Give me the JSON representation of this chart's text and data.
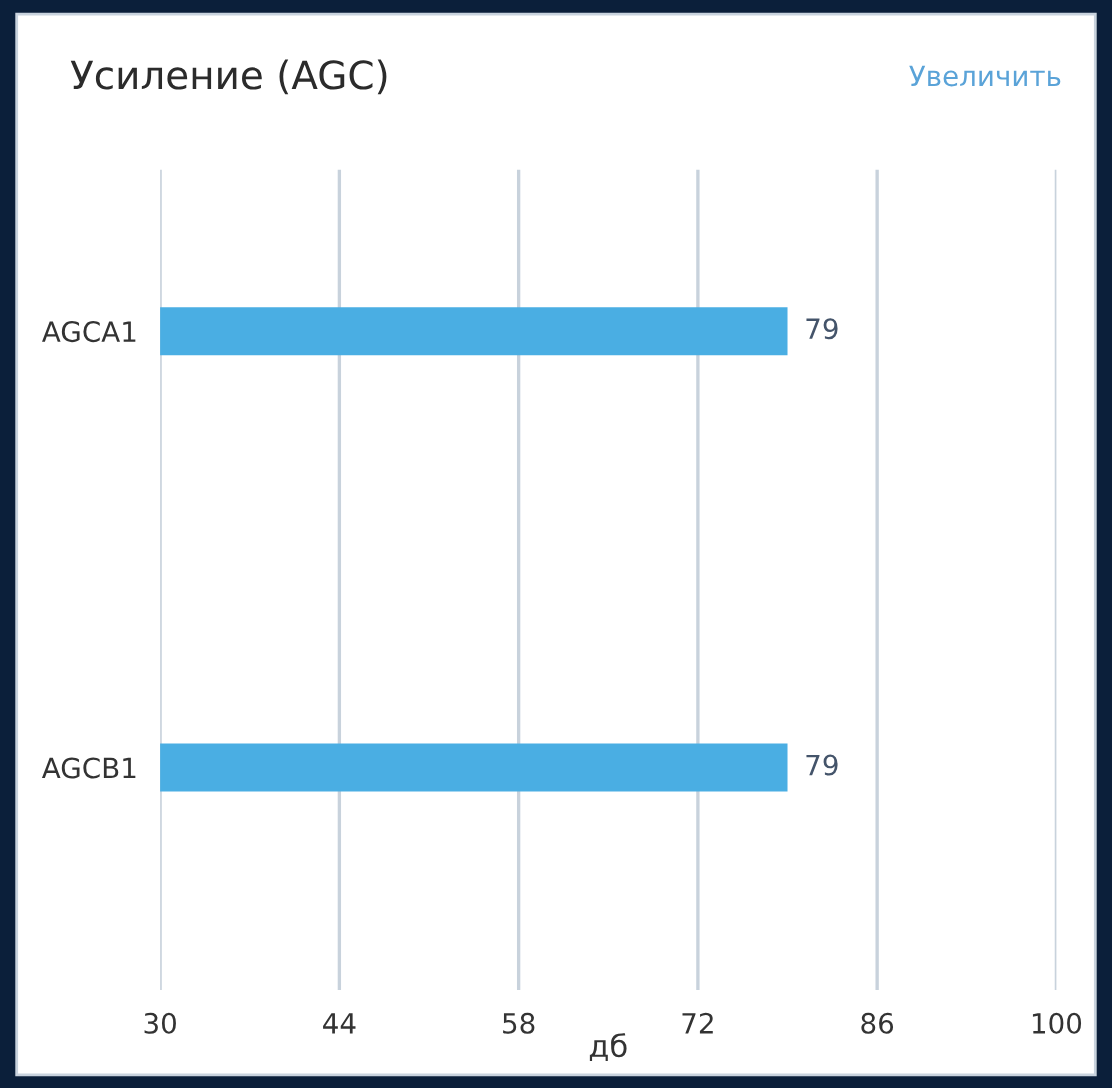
{
  "chart_data": {
    "type": "bar",
    "orientation": "horizontal",
    "title": "Усиление (AGC)",
    "xlabel": "дб",
    "annotations": [
      "Увеличить"
    ],
    "categories": [
      "AGCA1",
      "AGCB1"
    ],
    "series": [
      {
        "color": "#4aaee3",
        "values": [
          79,
          79
        ]
      }
    ],
    "xlim": [
      30,
      100
    ],
    "xticks": [
      30,
      44,
      58,
      72,
      86,
      100
    ],
    "grid": "x",
    "data_labels": true
  }
}
